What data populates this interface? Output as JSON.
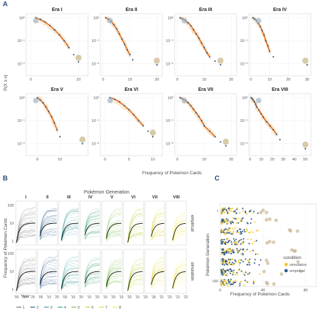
{
  "panels": {
    "a": {
      "letter": "A"
    },
    "b": {
      "letter": "B"
    },
    "c": {
      "letter": "C"
    }
  },
  "chart_data": [
    {
      "id": "A",
      "type": "scatter",
      "ylabel": "P(X ≥ x)",
      "xlabel": "Frequency of Pokémon Cards",
      "y_scale": "log",
      "ylim": [
        0.003,
        1.5
      ],
      "y_ticks": [
        "10⁰",
        "10⁻¹",
        "10⁻²"
      ],
      "grid": true,
      "facets": [
        {
          "title": "Era I",
          "xlim": [
            -1,
            12
          ],
          "x_ticks": [
            0,
            10
          ],
          "points": [
            [
              1,
              1
            ],
            [
              2,
              0.85
            ],
            [
              3,
              0.65
            ],
            [
              4,
              0.45
            ],
            [
              5,
              0.3
            ],
            [
              6,
              0.18
            ],
            [
              7,
              0.1
            ],
            [
              8,
              0.05
            ],
            [
              9,
              0.025
            ],
            [
              10,
              0.012
            ]
          ]
        },
        {
          "title": "Era II",
          "xlim": [
            -1,
            22
          ],
          "x_ticks": [
            0,
            10,
            20
          ],
          "points": [
            [
              1,
              1
            ],
            [
              2,
              0.88
            ],
            [
              3,
              0.7
            ],
            [
              4,
              0.5
            ],
            [
              5,
              0.33
            ],
            [
              6,
              0.2
            ],
            [
              7,
              0.12
            ],
            [
              8,
              0.07
            ],
            [
              9,
              0.04
            ],
            [
              10,
              0.025
            ],
            [
              11,
              0.015
            ],
            [
              20,
              0.009
            ]
          ]
        },
        {
          "title": "Era III",
          "xlim": [
            -1,
            22
          ],
          "x_ticks": [
            0,
            10,
            20
          ],
          "points": [
            [
              1,
              1
            ],
            [
              2,
              0.9
            ],
            [
              3,
              0.75
            ],
            [
              4,
              0.6
            ],
            [
              5,
              0.45
            ],
            [
              6,
              0.3
            ],
            [
              7,
              0.2
            ],
            [
              8,
              0.13
            ],
            [
              9,
              0.08
            ],
            [
              10,
              0.05
            ],
            [
              11,
              0.03
            ],
            [
              12,
              0.02
            ],
            [
              14,
              0.013
            ],
            [
              16,
              0.009
            ]
          ]
        },
        {
          "title": "Era IV",
          "xlim": [
            -1,
            32
          ],
          "x_ticks": [
            0,
            10,
            20,
            30
          ],
          "points": [
            [
              1,
              1
            ],
            [
              2,
              0.9
            ],
            [
              3,
              0.75
            ],
            [
              4,
              0.58
            ],
            [
              5,
              0.42
            ],
            [
              6,
              0.28
            ],
            [
              7,
              0.18
            ],
            [
              8,
              0.1
            ],
            [
              9,
              0.06
            ],
            [
              10,
              0.035
            ],
            [
              12,
              0.02
            ],
            [
              30,
              0.009
            ]
          ]
        },
        {
          "title": "Era V",
          "xlim": [
            4,
            15
          ],
          "x_ticks": [
            6,
            10
          ],
          "points": [
            [
              6,
              1
            ],
            [
              6.5,
              0.8
            ],
            [
              7,
              0.6
            ],
            [
              7.5,
              0.4
            ],
            [
              8,
              0.25
            ],
            [
              8.5,
              0.15
            ],
            [
              9,
              0.08
            ],
            [
              9.5,
              0.04
            ],
            [
              10,
              0.02
            ],
            [
              14,
              0.01
            ]
          ]
        },
        {
          "title": "Era VI",
          "xlim": [
            -1,
            12
          ],
          "x_ticks": [
            0,
            5,
            10
          ],
          "points": [
            [
              1,
              1
            ],
            [
              2,
              0.85
            ],
            [
              3,
              0.65
            ],
            [
              4,
              0.45
            ],
            [
              5,
              0.3
            ],
            [
              6,
              0.18
            ],
            [
              7,
              0.1
            ],
            [
              8,
              0.06
            ],
            [
              9,
              0.035
            ],
            [
              10,
              0.02
            ]
          ]
        },
        {
          "title": "Era VII",
          "xlim": [
            -1,
            22
          ],
          "x_ticks": [
            0,
            10,
            20
          ],
          "points": [
            [
              1,
              1
            ],
            [
              2,
              0.9
            ],
            [
              3,
              0.75
            ],
            [
              4,
              0.6
            ],
            [
              5,
              0.45
            ],
            [
              6,
              0.32
            ],
            [
              7,
              0.22
            ],
            [
              8,
              0.15
            ],
            [
              9,
              0.1
            ],
            [
              10,
              0.06
            ],
            [
              12,
              0.035
            ],
            [
              14,
              0.02
            ],
            [
              16,
              0.012
            ],
            [
              18,
              0.008
            ]
          ]
        },
        {
          "title": "Era VIII",
          "xlim": [
            -1,
            55
          ],
          "x_ticks": [
            0,
            10,
            20,
            30,
            40,
            50
          ],
          "points": [
            [
              1,
              1
            ],
            [
              2,
              0.9
            ],
            [
              3,
              0.78
            ],
            [
              4,
              0.65
            ],
            [
              5,
              0.52
            ],
            [
              6,
              0.4
            ],
            [
              8,
              0.28
            ],
            [
              10,
              0.2
            ],
            [
              12,
              0.14
            ],
            [
              15,
              0.09
            ],
            [
              18,
              0.06
            ],
            [
              21,
              0.04
            ],
            [
              24,
              0.025
            ],
            [
              27,
              0.015
            ],
            [
              50,
              0.006
            ]
          ]
        }
      ]
    },
    {
      "id": "B",
      "type": "line",
      "title": "Pokémon Generation",
      "ylabel": "Frequency of Pokémon Cards",
      "xlabel": "Year",
      "y_scale": "log",
      "y_ticks": [
        "100",
        "10",
        "1"
      ],
      "generations": [
        "I",
        "II",
        "III",
        "IV",
        "V",
        "VI",
        "VII",
        "VIII"
      ],
      "x_tick_labels": [
        "'00",
        "'10",
        "'20",
        "'00",
        "'10",
        "'20",
        "'00",
        "'10",
        "'20",
        "'10",
        "'20",
        "'10",
        "'20",
        "'15",
        "'20",
        "'15",
        "'20",
        "'18",
        "'21",
        "'20",
        "'21",
        "'22"
      ],
      "rows": [
        "empirical",
        "simulation"
      ],
      "colors": [
        "#6a6a6a",
        "#2c5d8f",
        "#3d9a9b",
        "#3aa66b",
        "#7bbf4a",
        "#b6d63e",
        "#e6d83c",
        "#f3e95a"
      ],
      "legend": [
        "1",
        "2",
        "3",
        "4",
        "5",
        "6",
        "7",
        "8"
      ]
    },
    {
      "id": "C",
      "type": "scatter",
      "ylabel": "Pokémon Generation",
      "xlabel": "Frequency of Pokémon Cards",
      "xlim": [
        0,
        90
      ],
      "x_ticks": [
        0,
        40,
        80
      ],
      "y_tick_labels": [
        "I",
        "VIII"
      ],
      "legend_title": "condition",
      "legend": [
        {
          "name": "simulation",
          "color": "#f2c425"
        },
        {
          "name": "empirical",
          "color": "#2b5887"
        }
      ]
    }
  ]
}
